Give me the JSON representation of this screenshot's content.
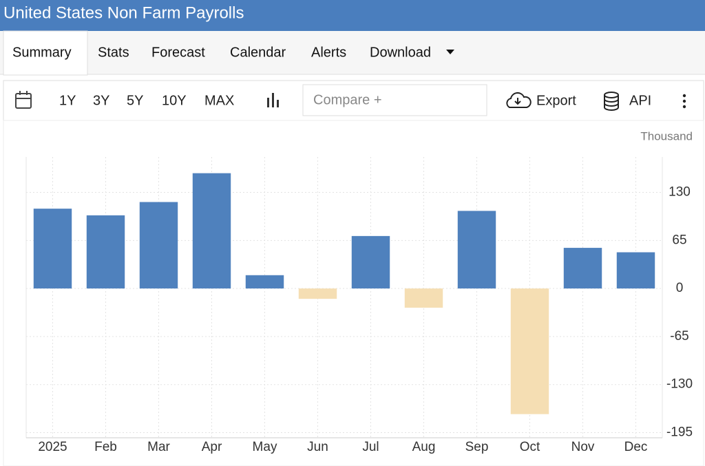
{
  "header": {
    "title": "United States Non Farm Payrolls"
  },
  "tabs": [
    "Summary",
    "Stats",
    "Forecast",
    "Calendar",
    "Alerts",
    "Download"
  ],
  "toolbar": {
    "ranges": [
      "1Y",
      "3Y",
      "5Y",
      "10Y",
      "MAX"
    ],
    "compare": "Compare +",
    "export": "Export",
    "api": "API"
  },
  "chart_data": {
    "type": "bar",
    "unit": "Thousand",
    "categories": [
      "2025",
      "Feb",
      "Mar",
      "Apr",
      "May",
      "Jun",
      "Jul",
      "Aug",
      "Sep",
      "Oct",
      "Nov",
      "Dec"
    ],
    "values": [
      108,
      99,
      117,
      156,
      18,
      -14,
      71,
      -26,
      105,
      -170,
      55,
      49
    ],
    "color": "#4f81bd",
    "negative_color": "#f5deb3",
    "ylim": [
      -202,
      178
    ],
    "yticks": [
      -195,
      -130,
      -65,
      0,
      65,
      130
    ],
    "grid": true
  }
}
